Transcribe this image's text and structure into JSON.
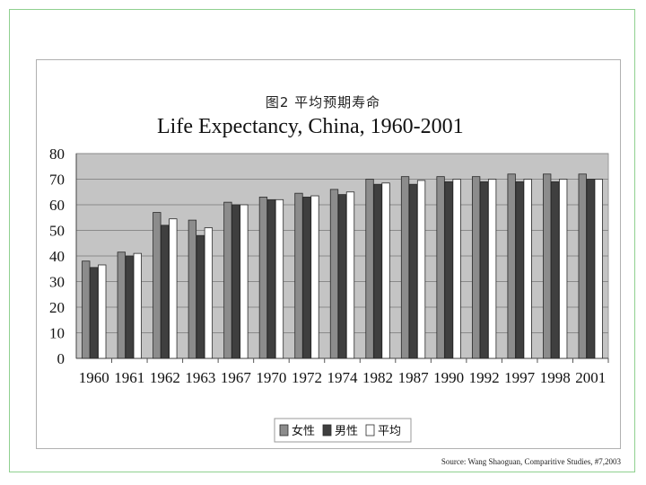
{
  "source": "Source: Wang Shaoguan, Comparitive Studies, #7,2003",
  "chart_data": {
    "type": "bar",
    "title": "图2  平均预期寿命",
    "subtitle": "Life Expectancy, China, 1960-2001",
    "xlabel": "",
    "ylabel": "",
    "ylim": [
      0,
      80
    ],
    "yticks": [
      "0",
      "10",
      "20",
      "30",
      "40",
      "50",
      "60",
      "70",
      "80"
    ],
    "grid": true,
    "legend_position": "bottom",
    "categories": [
      "1960",
      "1961",
      "1962",
      "1963",
      "1967",
      "1970",
      "1972",
      "1974",
      "1982",
      "1987",
      "1990",
      "1992",
      "1997",
      "1998",
      "2001"
    ],
    "series": [
      {
        "name": "女性",
        "color": "#8c8c8c",
        "values": [
          38,
          41.5,
          57,
          54,
          61,
          63,
          64.5,
          66,
          70,
          71,
          71,
          71,
          72,
          72,
          72
        ]
      },
      {
        "name": "男性",
        "color": "#3f3f3f",
        "values": [
          35.5,
          40,
          52,
          48,
          60,
          62,
          63,
          64,
          68,
          68,
          69,
          69,
          69,
          69,
          70
        ]
      },
      {
        "name": "平均",
        "color": "#ffffff",
        "values": [
          36.5,
          41,
          54.5,
          51,
          60,
          62,
          63.5,
          65,
          68.5,
          69.5,
          70,
          70,
          70,
          70,
          70
        ]
      }
    ]
  }
}
